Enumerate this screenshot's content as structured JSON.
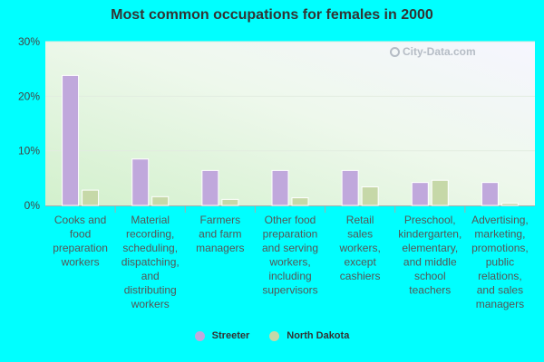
{
  "chart_data": {
    "type": "bar",
    "title": "Most common occupations for females in 2000",
    "xlabel": "",
    "ylabel": "",
    "ylim": [
      0,
      30
    ],
    "yticks": [
      "0%",
      "10%",
      "20%",
      "30%"
    ],
    "categories": [
      "Cooks and food preparation workers",
      "Material recording, scheduling, dispatching, and distributing workers",
      "Farmers and farm managers",
      "Other food preparation and serving workers, including supervisors",
      "Retail sales workers, except cashiers",
      "Preschool, kindergarten, elementary, and middle school teachers",
      "Advertising, marketing, promotions, public relations, and sales managers"
    ],
    "category_lines": [
      [
        "Cooks and",
        "food",
        "preparation",
        "workers"
      ],
      [
        "Material",
        "recording,",
        "scheduling,",
        "dispatching,",
        "and",
        "distributing",
        "workers"
      ],
      [
        "Farmers",
        "and farm",
        "managers"
      ],
      [
        "Other food",
        "preparation",
        "and serving",
        "workers,",
        "including",
        "supervisors"
      ],
      [
        "Retail",
        "sales",
        "workers,",
        "except",
        "cashiers"
      ],
      [
        "Preschool,",
        "kindergarten,",
        "elementary,",
        "and middle",
        "school",
        "teachers"
      ],
      [
        "Advertising,",
        "marketing,",
        "promotions,",
        "public",
        "relations,",
        "and sales",
        "managers"
      ]
    ],
    "series": [
      {
        "name": "Streeter",
        "color": "#c0a8dc",
        "values": [
          23.8,
          8.5,
          6.4,
          6.4,
          6.4,
          4.2,
          4.2
        ]
      },
      {
        "name": "North Dakota",
        "color": "#c6d8a8",
        "values": [
          2.8,
          1.6,
          1.1,
          1.4,
          3.4,
          4.6,
          0.4
        ]
      }
    ],
    "legend_position": "bottom",
    "grid": true
  },
  "watermark": "City-Data.com"
}
